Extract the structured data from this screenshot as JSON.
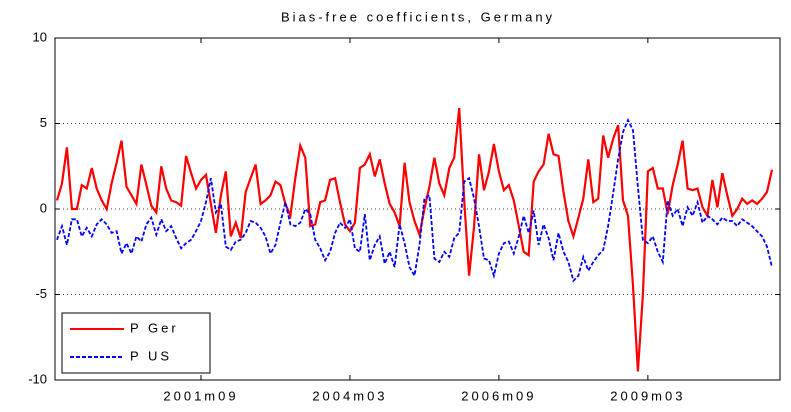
{
  "chart_data": {
    "type": "line",
    "title": "Bias-free coefficients, Germany",
    "categories": [
      null,
      null,
      null,
      null,
      null,
      null,
      null,
      null,
      null,
      null,
      null,
      null,
      null,
      null,
      null,
      null,
      null,
      null,
      null,
      null,
      null,
      null,
      null,
      null,
      null,
      null,
      null,
      null,
      null,
      "2001m09",
      null,
      null,
      null,
      null,
      null,
      null,
      null,
      null,
      null,
      null,
      null,
      null,
      null,
      null,
      null,
      null,
      null,
      null,
      null,
      null,
      null,
      null,
      null,
      null,
      null,
      null,
      null,
      null,
      null,
      "2004m03",
      null,
      null,
      null,
      null,
      null,
      null,
      null,
      null,
      null,
      null,
      null,
      null,
      null,
      null,
      null,
      null,
      null,
      null,
      null,
      null,
      null,
      null,
      null,
      null,
      null,
      null,
      null,
      null,
      null,
      "2006m09",
      null,
      null,
      null,
      null,
      null,
      null,
      null,
      null,
      null,
      null,
      null,
      null,
      null,
      null,
      null,
      null,
      null,
      null,
      null,
      null,
      null,
      null,
      null,
      null,
      null,
      null,
      null,
      null,
      null,
      "2009m03",
      null,
      null,
      null,
      null,
      null,
      null,
      null,
      null,
      null,
      null,
      null,
      null,
      null,
      null,
      null,
      null,
      null,
      null,
      null,
      null,
      null,
      null,
      null,
      null,
      null
    ],
    "series": [
      {
        "name": "P Ger",
        "color": "#ff0000",
        "linestyle": "solid",
        "values": [
          0.5,
          1.5,
          3.6,
          0,
          0,
          1.4,
          1.2,
          2.4,
          1.2,
          0.5,
          0,
          1.5,
          2.7,
          4.0,
          1.3,
          0.8,
          0.3,
          2.6,
          1.4,
          0.2,
          -0.2,
          2.5,
          1.2,
          0.5,
          0.4,
          0.2,
          3.1,
          2.1,
          1.2,
          1.7,
          2.0,
          0.3,
          -1.4,
          0.8,
          2.2,
          -1.6,
          -0.8,
          -1.7,
          1.0,
          1.8,
          2.6,
          0.3,
          0.5,
          0.8,
          1.6,
          1.4,
          0.3,
          -0.4,
          1.8,
          3.7,
          3.0,
          -1.0,
          -0.9,
          0.4,
          0.5,
          1.7,
          1.8,
          0.4,
          -0.9,
          -1.3,
          -0.8,
          2.4,
          2.6,
          3.2,
          1.9,
          2.9,
          1.5,
          0.3,
          -0.2,
          -1.0,
          2.7,
          0.4,
          -0.7,
          -1.5,
          0,
          1.3,
          3.0,
          1.5,
          0.8,
          2.4,
          3.0,
          5.9,
          0.5,
          -3.9,
          -1.0,
          3.2,
          1.1,
          2.2,
          3.8,
          2.2,
          1.1,
          1.4,
          0.5,
          -1.0,
          -2.5,
          -2.7,
          1.6,
          2.2,
          2.6,
          4.4,
          3.2,
          3.1,
          1.0,
          -0.7,
          -1.6,
          -0.5,
          0.6,
          2.9,
          0.4,
          0.6,
          4.3,
          3.0,
          4.1,
          4.9,
          0.5,
          -0.4,
          -4.5,
          -9.5,
          -5.0,
          2.2,
          2.4,
          1.2,
          1.2,
          -0.3,
          1.4,
          2.6,
          4.0,
          1.2,
          1.1,
          1.2,
          0.1,
          -0.4,
          1.7,
          0.1,
          2.1,
          0.8,
          -0.4,
          0,
          0.6,
          0.3,
          0.5,
          0.3,
          0.6,
          1.0,
          2.3
        ]
      },
      {
        "name": "P US",
        "color": "#0000ff",
        "linestyle": "dashed",
        "values": [
          -1.8,
          -1.0,
          -2.1,
          -0.6,
          -0.6,
          -1.6,
          -1.1,
          -1.6,
          -0.9,
          -0.6,
          -0.9,
          -1.4,
          -1.3,
          -2.6,
          -2.0,
          -2.6,
          -1.6,
          -1.9,
          -0.9,
          -0.5,
          -1.5,
          -0.6,
          -1.3,
          -1.0,
          -1.7,
          -2.3,
          -2.0,
          -1.8,
          -1.3,
          -0.7,
          0.4,
          1.8,
          -0.2,
          0.3,
          -2.2,
          -2.4,
          -1.9,
          -1.8,
          -1.4,
          -0.7,
          -0.8,
          -1.1,
          -1.6,
          -2.6,
          -2.1,
          -0.8,
          0.4,
          -0.9,
          -1.0,
          -0.8,
          0,
          -0.3,
          -1.8,
          -2.3,
          -3.0,
          -2.5,
          -1.4,
          -0.8,
          -1.1,
          -0.6,
          -2.3,
          -2.5,
          -0.3,
          -3.0,
          -2.1,
          -1.6,
          -3.2,
          -2.5,
          -3.4,
          -0.9,
          -2.0,
          -3.4,
          -3.9,
          -2.1,
          0.6,
          0.8,
          -2.9,
          -3.1,
          -2.5,
          -2.8,
          -1.7,
          -1.4,
          1.6,
          1.8,
          0.6,
          -1.0,
          -2.9,
          -3.0,
          -3.9,
          -2.6,
          -2.0,
          -1.9,
          -2.6,
          -1.6,
          -0.4,
          -1.4,
          -0.1,
          -2.1,
          -0.9,
          -1.7,
          -3.0,
          -1.4,
          -2.5,
          -3.1,
          -4.2,
          -3.9,
          -2.8,
          -3.6,
          -3.1,
          -2.7,
          -2.4,
          -1.0,
          0.9,
          2.9,
          4.5,
          5.2,
          4.6,
          1.3,
          -1.8,
          -2.0,
          -1.6,
          -2.5,
          -3.1,
          0.5,
          -0.4,
          0,
          -1.0,
          0.1,
          -0.4,
          0.4,
          -0.8,
          -0.4,
          -0.6,
          -0.9,
          -0.5,
          -0.7,
          -0.7,
          -1.0,
          -0.6,
          -0.8,
          -1.0,
          -1.3,
          -1.6,
          -2.2,
          -3.4
        ]
      }
    ],
    "ylim": [
      -10,
      10
    ],
    "yticks": [
      -10,
      -5,
      0,
      5,
      10
    ],
    "grid": true,
    "legend": "lower left"
  }
}
